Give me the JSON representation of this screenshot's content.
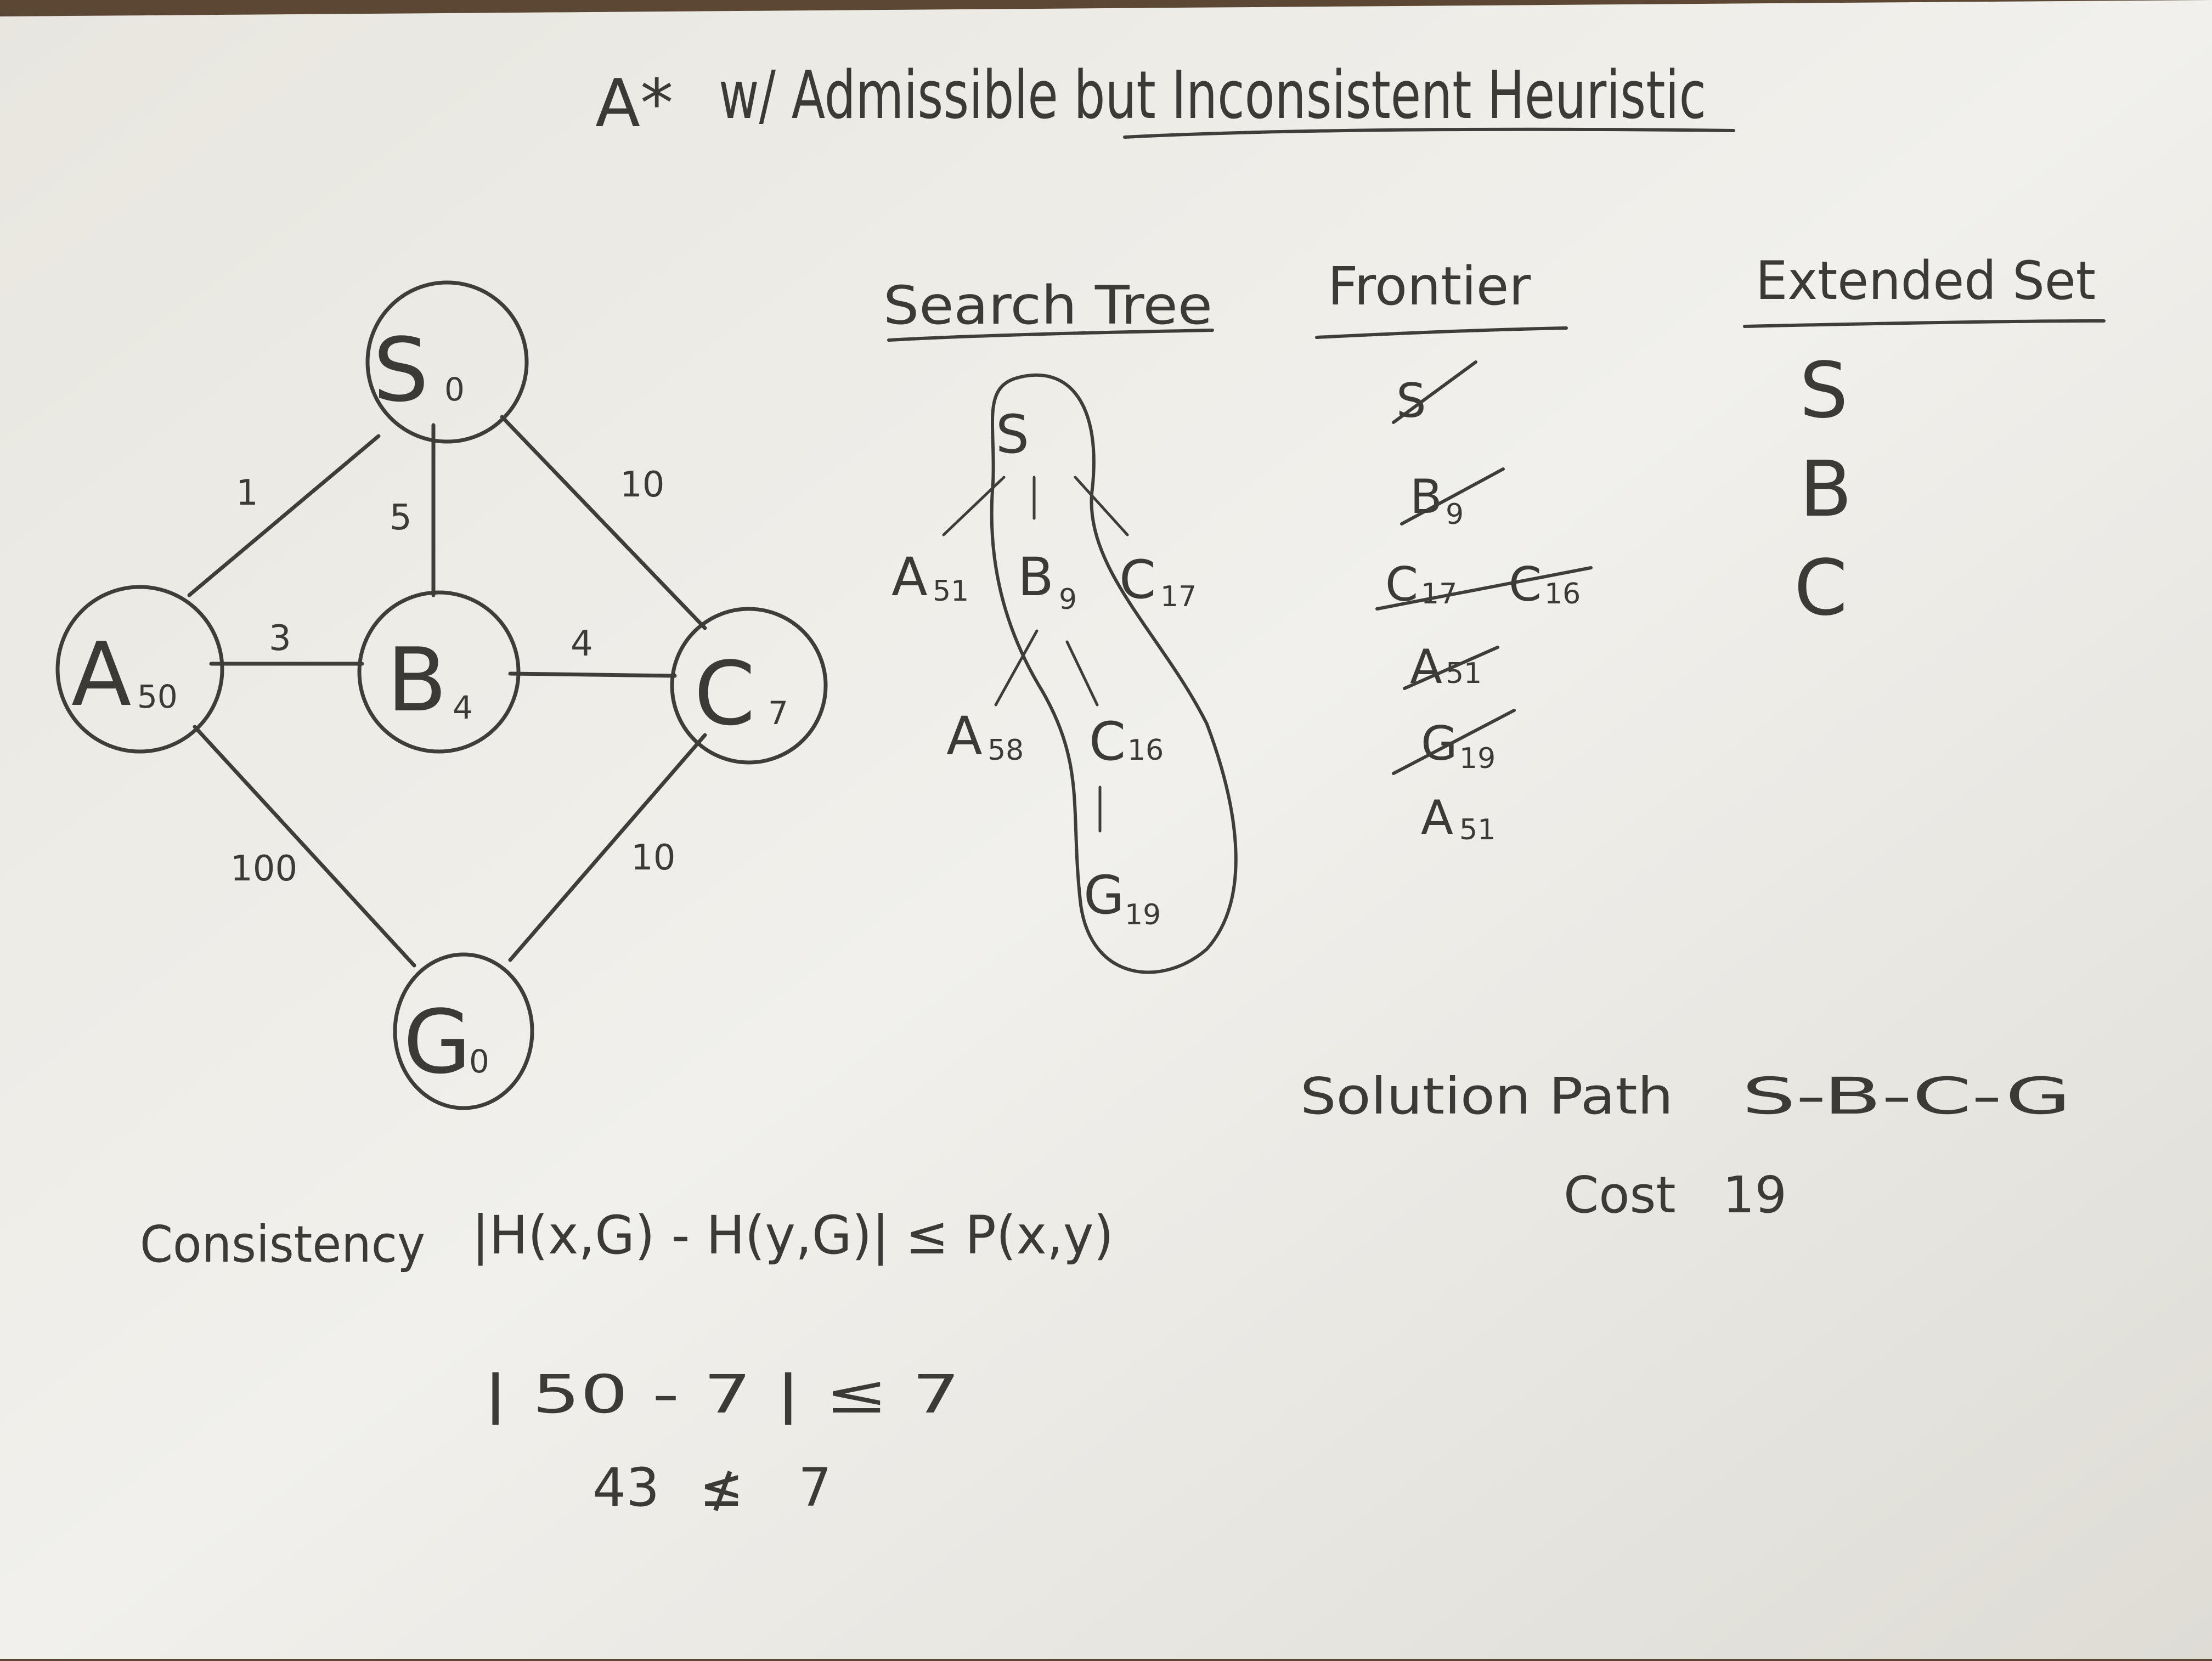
{
  "title": {
    "main": "A*",
    "rest": "w/ Admissible but Inconsistent Heuristic"
  },
  "graph": {
    "nodes": [
      {
        "id": "S",
        "h": "0"
      },
      {
        "id": "A",
        "h": "50"
      },
      {
        "id": "B",
        "h": "4"
      },
      {
        "id": "C",
        "h": "7"
      },
      {
        "id": "G",
        "h": "0"
      }
    ],
    "edges": [
      {
        "from": "S",
        "to": "A",
        "cost": "1"
      },
      {
        "from": "S",
        "to": "B",
        "cost": "5"
      },
      {
        "from": "S",
        "to": "C",
        "cost": "10"
      },
      {
        "from": "A",
        "to": "B",
        "cost": "3"
      },
      {
        "from": "B",
        "to": "C",
        "cost": "4"
      },
      {
        "from": "A",
        "to": "G",
        "cost": "100"
      },
      {
        "from": "C",
        "to": "G",
        "cost": "10"
      }
    ]
  },
  "search_tree": {
    "header": "Search Tree",
    "nodes": [
      {
        "letter": "S",
        "value": ""
      },
      {
        "letter": "A",
        "value": "51"
      },
      {
        "letter": "B",
        "value": "9"
      },
      {
        "letter": "C",
        "value": "17"
      },
      {
        "letter": "A",
        "value": "58"
      },
      {
        "letter": "C",
        "value": "16"
      },
      {
        "letter": "G",
        "value": "19"
      }
    ]
  },
  "frontier": {
    "header": "Frontier",
    "rows": [
      [
        {
          "letter": "S",
          "value": "",
          "crossed": true
        }
      ],
      [
        {
          "letter": "B",
          "value": "9",
          "crossed": true
        }
      ],
      [
        {
          "letter": "C",
          "value": "17",
          "crossed": true
        },
        {
          "letter": "C",
          "value": "16",
          "crossed": true
        }
      ],
      [
        {
          "letter": "A",
          "value": "51",
          "crossed": true
        }
      ],
      [
        {
          "letter": "G",
          "value": "19",
          "crossed": true
        }
      ],
      [
        {
          "letter": "A",
          "value": "51",
          "crossed": false
        }
      ]
    ]
  },
  "extended_set": {
    "header": "Extended Set",
    "items": [
      "S",
      "B",
      "C"
    ]
  },
  "solution": {
    "path_label": "Solution Path",
    "path": "S-B-C-G",
    "cost_label": "Cost",
    "cost": "19"
  },
  "consistency": {
    "label": "Consistency",
    "formula": "|H(x,G) - H(y,G)| ≤ P(x,y)",
    "line2": "| 50 - 7 |  ≤  7",
    "line3_lhs": "43",
    "line3_op": "≰",
    "line3_rhs": "7"
  }
}
